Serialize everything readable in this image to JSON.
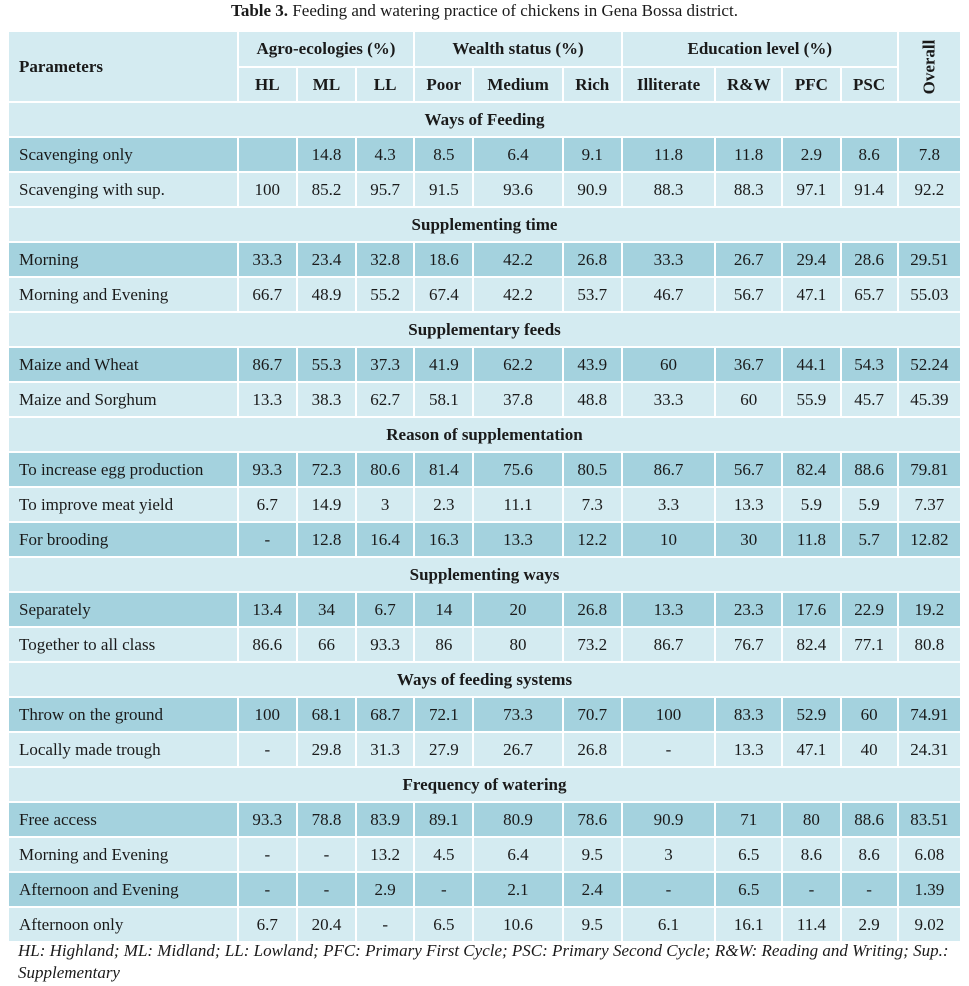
{
  "caption": {
    "label": "Table 3.",
    "text": " Feeding and watering practice of chickens in Gena Bossa district."
  },
  "header": {
    "parameters": "Parameters",
    "groups": {
      "agro": "Agro-ecologies (%)",
      "wealth": "Wealth status (%)",
      "education": "Education level (%)"
    },
    "overall": "Overall",
    "columns": [
      "HL",
      "ML",
      "LL",
      "Poor",
      "Medium",
      "Rich",
      "Illiterate",
      "R&W",
      "PFC",
      "PSC"
    ]
  },
  "sections": [
    {
      "title": "Ways of Feeding",
      "rows": [
        {
          "label": "Scavenging only",
          "values": [
            "",
            "14.8",
            "4.3",
            "8.5",
            "6.4",
            "9.1",
            "11.8",
            "11.8",
            "2.9",
            "8.6",
            "7.8"
          ]
        },
        {
          "label": "Scavenging with sup.",
          "values": [
            "100",
            "85.2",
            "95.7",
            "91.5",
            "93.6",
            "90.9",
            "88.3",
            "88.3",
            "97.1",
            "91.4",
            "92.2"
          ]
        }
      ]
    },
    {
      "title": "Supplementing time",
      "rows": [
        {
          "label": "Morning",
          "values": [
            "33.3",
            "23.4",
            "32.8",
            "18.6",
            "42.2",
            "26.8",
            "33.3",
            "26.7",
            "29.4",
            "28.6",
            "29.51"
          ]
        },
        {
          "label": "Morning and Evening",
          "values": [
            "66.7",
            "48.9",
            "55.2",
            "67.4",
            "42.2",
            "53.7",
            "46.7",
            "56.7",
            "47.1",
            "65.7",
            "55.03"
          ]
        }
      ]
    },
    {
      "title": "Supplementary feeds",
      "rows": [
        {
          "label": "Maize and Wheat",
          "values": [
            "86.7",
            "55.3",
            "37.3",
            "41.9",
            "62.2",
            "43.9",
            "60",
            "36.7",
            "44.1",
            "54.3",
            "52.24"
          ]
        },
        {
          "label": "Maize and Sorghum",
          "values": [
            "13.3",
            "38.3",
            "62.7",
            "58.1",
            "37.8",
            "48.8",
            "33.3",
            "60",
            "55.9",
            "45.7",
            "45.39"
          ]
        }
      ]
    },
    {
      "title": "Reason of supplementation",
      "rows": [
        {
          "label": "To increase egg production",
          "values": [
            "93.3",
            "72.3",
            "80.6",
            "81.4",
            "75.6",
            "80.5",
            "86.7",
            "56.7",
            "82.4",
            "88.6",
            "79.81"
          ]
        },
        {
          "label": "To improve meat yield",
          "values": [
            "6.7",
            "14.9",
            "3",
            "2.3",
            "11.1",
            "7.3",
            "3.3",
            "13.3",
            "5.9",
            "5.9",
            "7.37"
          ]
        },
        {
          "label": "For brooding",
          "values": [
            "-",
            "12.8",
            "16.4",
            "16.3",
            "13.3",
            "12.2",
            "10",
            "30",
            "11.8",
            "5.7",
            "12.82"
          ]
        }
      ]
    },
    {
      "title": "Supplementing ways",
      "rows": [
        {
          "label": "Separately",
          "values": [
            "13.4",
            "34",
            "6.7",
            "14",
            "20",
            "26.8",
            "13.3",
            "23.3",
            "17.6",
            "22.9",
            "19.2"
          ]
        },
        {
          "label": "Together to all class",
          "values": [
            "86.6",
            "66",
            "93.3",
            "86",
            "80",
            "73.2",
            "86.7",
            "76.7",
            "82.4",
            "77.1",
            "80.8"
          ]
        }
      ]
    },
    {
      "title": "Ways of feeding systems",
      "rows": [
        {
          "label": "Throw on the ground",
          "values": [
            "100",
            "68.1",
            "68.7",
            "72.1",
            "73.3",
            "70.7",
            "100",
            "83.3",
            "52.9",
            "60",
            "74.91"
          ]
        },
        {
          "label": "Locally made trough",
          "values": [
            "-",
            "29.8",
            "31.3",
            "27.9",
            "26.7",
            "26.8",
            "-",
            "13.3",
            "47.1",
            "40",
            "24.31"
          ]
        }
      ]
    },
    {
      "title": "Frequency of watering",
      "rows": [
        {
          "label": "Free access",
          "values": [
            "93.3",
            "78.8",
            "83.9",
            "89.1",
            "80.9",
            "78.6",
            "90.9",
            "71",
            "80",
            "88.6",
            "83.51"
          ]
        },
        {
          "label": "Morning and Evening",
          "values": [
            "-",
            "-",
            "13.2",
            "4.5",
            "6.4",
            "9.5",
            "3",
            "6.5",
            "8.6",
            "8.6",
            "6.08"
          ]
        },
        {
          "label": "Afternoon and Evening",
          "values": [
            "-",
            "-",
            "2.9",
            "-",
            "2.1",
            "2.4",
            "-",
            "6.5",
            "-",
            "-",
            "1.39"
          ]
        },
        {
          "label": "Afternoon only",
          "values": [
            "6.7",
            "20.4",
            "-",
            "6.5",
            "10.6",
            "9.5",
            "6.1",
            "16.1",
            "11.4",
            "2.9",
            "9.02"
          ]
        }
      ]
    }
  ],
  "footnote": "HL: Highland; ML: Midland; LL: Lowland; PFC: Primary First Cycle; PSC: Primary Second Cycle; R&W: Reading and Writing; Sup.: Supplementary",
  "colors": {
    "dark_row": "#a4d2de",
    "light_row": "#d4ebf1",
    "border": "#ffffff"
  }
}
